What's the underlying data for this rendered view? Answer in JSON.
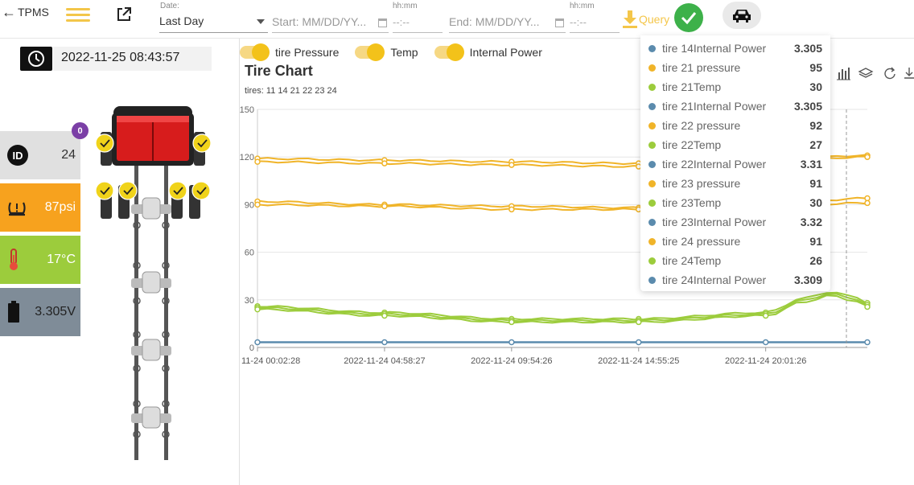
{
  "header": {
    "back_label": "TPMS",
    "date_label": "Date:",
    "date_value": "Last Day",
    "start_placeholder": "Start: MM/DD/YY...",
    "start_time_label": "hh:mm",
    "start_time_placeholder": "--:--",
    "end_placeholder": "End: MM/DD/YY...",
    "end_time_label": "hh:mm",
    "end_time_placeholder": "--:--",
    "query_label": "Query"
  },
  "status": {
    "datetime": "2022-11-25 08:43:57",
    "badge": "0",
    "id_value": "24",
    "pressure": "87psi",
    "temperature": "17°C",
    "voltage": "3.305V"
  },
  "legend": [
    {
      "label": "tire Pressure"
    },
    {
      "label": "Temp"
    },
    {
      "label": "Internal Power"
    }
  ],
  "chart": {
    "title": "Tire Chart",
    "subtitle": "tires: 11 14 21 22 23 24"
  },
  "colors": {
    "pressure": "#f0b429",
    "temp": "#9ccc3c",
    "power": "#5b8bad",
    "accent": "#f3c64a",
    "check": "#3db14a"
  },
  "chart_data": {
    "type": "line",
    "y_ticks": [
      "150",
      "120",
      "90",
      "60",
      "30",
      "0"
    ],
    "ylim": [
      0,
      150
    ],
    "x_tick_labels": [
      "11-24 00:02:28",
      "2022-11-24 04:58:27",
      "2022-11-24 09:54:26",
      "2022-11-24 14:55:25",
      "2022-11-24 20:01:26"
    ],
    "x_hours": [
      0,
      5,
      10,
      15,
      20,
      24
    ],
    "series": [
      {
        "group": "pressure",
        "values": [
          119,
          118,
          117,
          116,
          118,
          121
        ]
      },
      {
        "group": "pressure",
        "values": [
          117,
          116,
          115,
          114,
          117,
          120
        ]
      },
      {
        "group": "pressure",
        "values": [
          92,
          90,
          89,
          88,
          90,
          94
        ]
      },
      {
        "group": "pressure",
        "values": [
          90,
          89,
          87,
          87,
          89,
          91
        ]
      },
      {
        "group": "temp",
        "values": [
          26,
          22,
          18,
          18,
          22,
          30
        ]
      },
      {
        "group": "temp",
        "values": [
          25,
          21,
          17,
          17,
          21,
          28
        ]
      },
      {
        "group": "temp",
        "values": [
          24,
          20,
          16,
          16,
          20,
          27
        ]
      },
      {
        "group": "power",
        "values": [
          3.3,
          3.3,
          3.3,
          3.3,
          3.3,
          3.3
        ]
      }
    ],
    "temp_bump": {
      "hours": [
        20,
        21.5,
        22.5,
        23.5,
        24
      ],
      "values": [
        22,
        31,
        35,
        32,
        28
      ]
    }
  },
  "tooltip": [
    {
      "name": "tire 14Internal Power",
      "value": "3.305",
      "color": "#5b8bad"
    },
    {
      "name": "tire 21 pressure",
      "value": "95",
      "color": "#f0b429"
    },
    {
      "name": "tire 21Temp",
      "value": "30",
      "color": "#9ccc3c"
    },
    {
      "name": "tire 21Internal Power",
      "value": "3.305",
      "color": "#5b8bad"
    },
    {
      "name": "tire 22 pressure",
      "value": "92",
      "color": "#f0b429"
    },
    {
      "name": "tire 22Temp",
      "value": "27",
      "color": "#9ccc3c"
    },
    {
      "name": "tire 22Internal Power",
      "value": "3.31",
      "color": "#5b8bad"
    },
    {
      "name": "tire 23 pressure",
      "value": "91",
      "color": "#f0b429"
    },
    {
      "name": "tire 23Temp",
      "value": "30",
      "color": "#9ccc3c"
    },
    {
      "name": "tire 23Internal Power",
      "value": "3.32",
      "color": "#5b8bad"
    },
    {
      "name": "tire 24 pressure",
      "value": "91",
      "color": "#f0b429"
    },
    {
      "name": "tire 24Temp",
      "value": "26",
      "color": "#9ccc3c"
    },
    {
      "name": "tire 24Internal Power",
      "value": "3.309",
      "color": "#5b8bad"
    }
  ]
}
